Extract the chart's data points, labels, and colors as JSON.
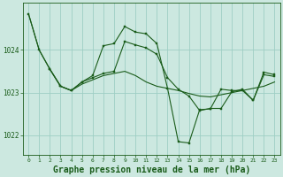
{
  "background_color": "#cce8e0",
  "grid_color": "#9ecec4",
  "line_color": "#1a5c1a",
  "marker_color": "#1a5c1a",
  "xlabel": "Graphe pression niveau de la mer (hPa)",
  "xlabel_fontsize": 7,
  "ylim": [
    1021.55,
    1025.1
  ],
  "yticks": [
    1022,
    1023,
    1024
  ],
  "xlim": [
    -0.5,
    23.5
  ],
  "xticks": [
    0,
    1,
    2,
    3,
    4,
    5,
    6,
    7,
    8,
    9,
    10,
    11,
    12,
    13,
    14,
    15,
    16,
    17,
    18,
    19,
    20,
    21,
    22,
    23
  ],
  "series1_x": [
    0,
    1,
    2,
    3,
    4,
    5,
    6,
    7,
    8,
    9,
    10,
    11,
    12,
    13,
    14,
    15,
    16,
    17,
    18,
    19,
    20,
    21,
    22,
    23
  ],
  "series1_y": [
    1024.85,
    1024.0,
    1023.55,
    1023.15,
    1023.05,
    1023.2,
    1023.3,
    1023.4,
    1023.45,
    1023.5,
    1023.4,
    1023.25,
    1023.15,
    1023.1,
    1023.05,
    1022.98,
    1022.92,
    1022.9,
    1022.95,
    1023.0,
    1023.05,
    1023.1,
    1023.15,
    1023.25
  ],
  "series2_x": [
    0,
    1,
    2,
    3,
    4,
    5,
    6,
    7,
    8,
    9,
    10,
    11,
    12,
    13,
    14,
    15,
    16,
    17,
    18,
    19,
    20,
    21,
    22,
    23
  ],
  "series2_y": [
    1024.85,
    1024.0,
    1023.55,
    1023.15,
    1023.05,
    1023.25,
    1023.4,
    1024.1,
    1024.15,
    1024.55,
    1024.42,
    1024.38,
    1024.15,
    1023.1,
    1021.85,
    1021.82,
    1022.6,
    1022.62,
    1023.08,
    1023.05,
    1023.05,
    1022.82,
    1023.42,
    1023.38
  ],
  "series3_x": [
    2,
    3,
    4,
    5,
    6,
    7,
    8,
    9,
    10,
    11,
    12,
    13,
    14,
    15,
    16,
    17,
    18,
    19,
    20,
    21,
    22,
    23
  ],
  "series3_y": [
    1023.55,
    1023.15,
    1023.05,
    1023.25,
    1023.35,
    1023.45,
    1023.5,
    1024.2,
    1024.12,
    1024.05,
    1023.9,
    1023.35,
    1023.08,
    1022.92,
    1022.58,
    1022.63,
    1022.63,
    1023.02,
    1023.08,
    1022.82,
    1023.48,
    1023.42
  ]
}
